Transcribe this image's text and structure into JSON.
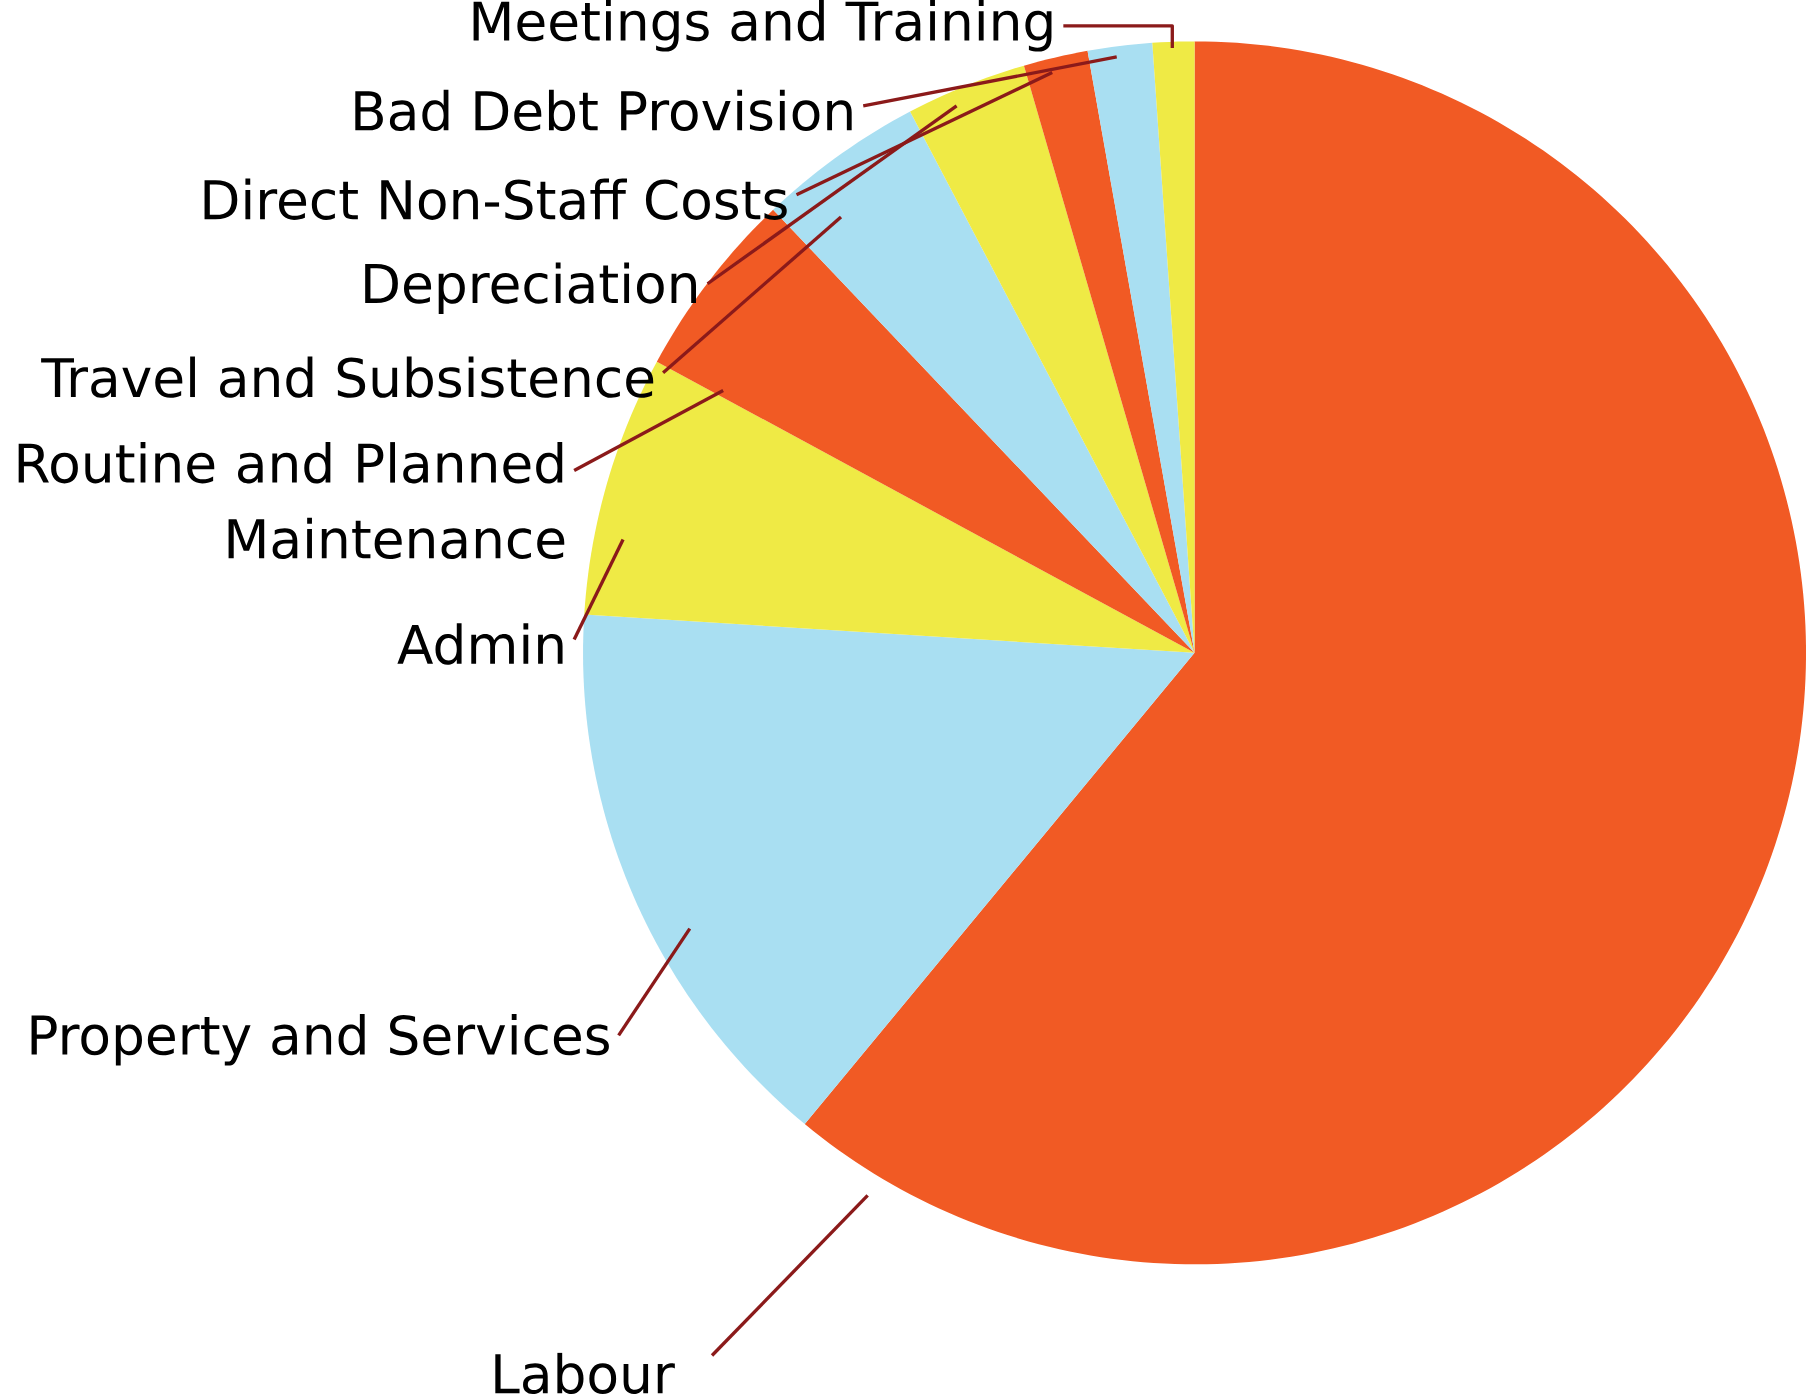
{
  "chart_data": {
    "type": "pie",
    "categories": [
      "Labour",
      "Property and Services",
      "Admin",
      "Routine and Planned Maintenance",
      "Travel and Subsistence",
      "Depreciation",
      "Direct Non-Staff Costs",
      "Bad Debt Provision",
      "Meetings and Training"
    ],
    "values": [
      61.0,
      15.0,
      6.9,
      5.0,
      4.4,
      3.2,
      1.7,
      1.7,
      1.1
    ],
    "colors": [
      "#f15a24",
      "#a9dff2",
      "#efea45",
      "#f15a24",
      "#a9dff2",
      "#efea45",
      "#f15a24",
      "#a9dff2",
      "#efea45"
    ]
  }
}
